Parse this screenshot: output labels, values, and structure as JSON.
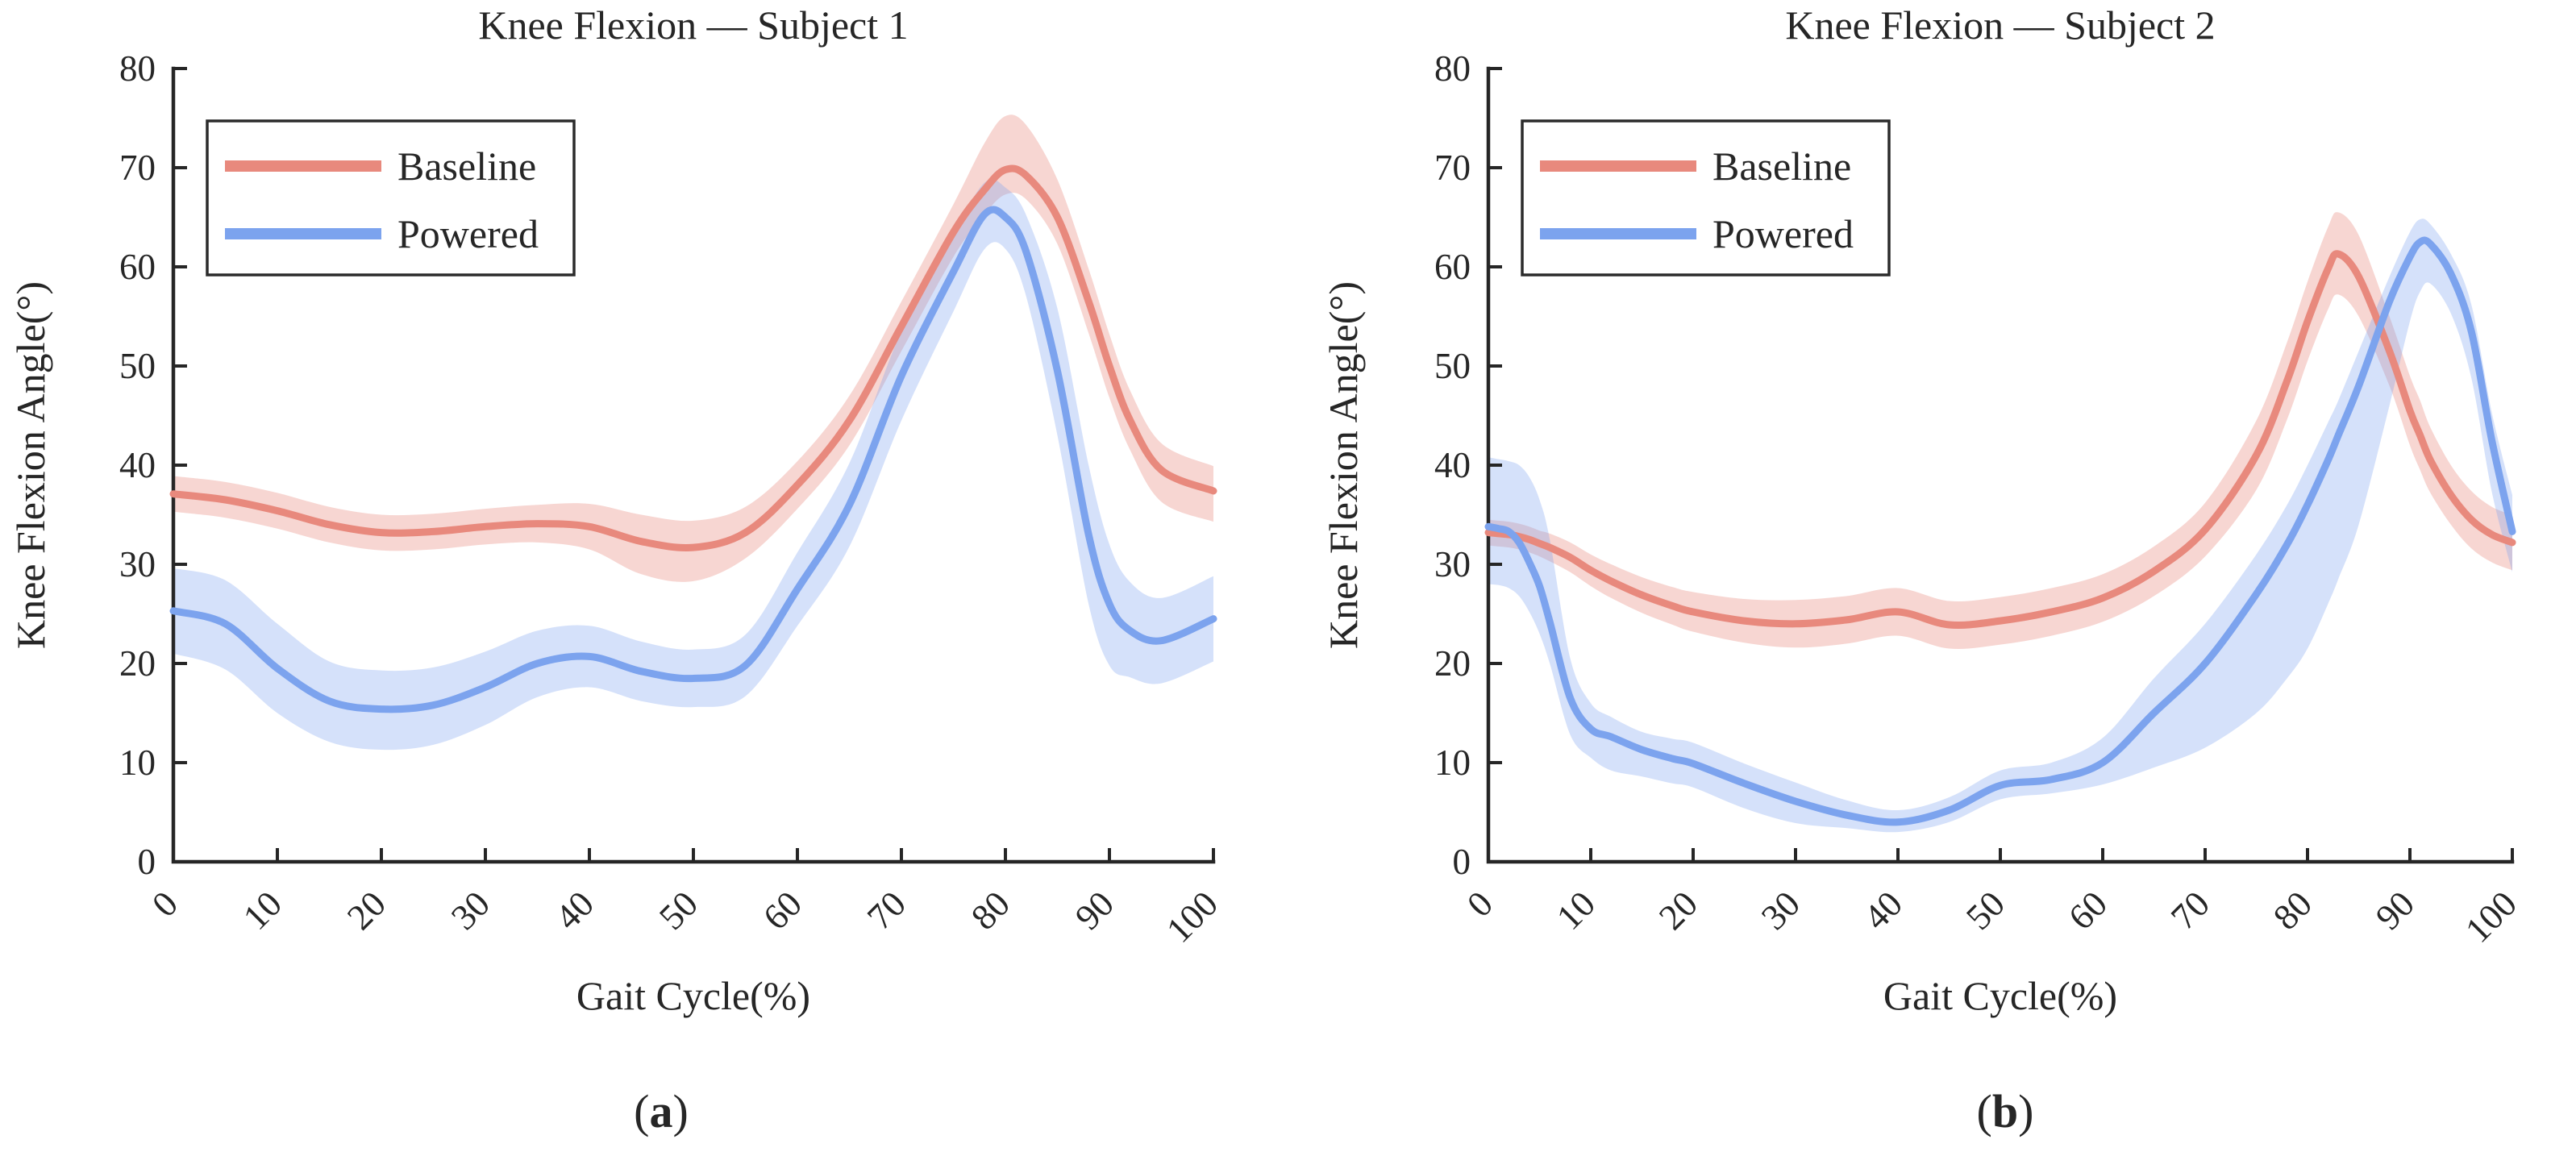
{
  "figure": {
    "background": "#ffffff",
    "description": "Two-panel line chart of knee flexion angle over the gait cycle with mean lines and shaded standard-deviation bands"
  },
  "colors": {
    "baseline": "#e8897d",
    "powered": "#7ca3ee",
    "baseline_band_opacity": 0.35,
    "powered_band_opacity": 0.32,
    "axis": "#262626",
    "text": "#262626",
    "legend_border": "#2b2b2b",
    "legend_fill": "#ffffff"
  },
  "chart_data": [
    {
      "type": "line",
      "title": "Knee Flexion — Subject 1",
      "xlabel": "Gait Cycle(%)",
      "ylabel": "Knee Flexion Angle(°)",
      "caption": {
        "prefix": "(",
        "letter": "a",
        "suffix": ")"
      },
      "xlim": [
        0,
        100
      ],
      "ylim": [
        0,
        80
      ],
      "xticks": [
        0,
        10,
        20,
        30,
        40,
        50,
        60,
        70,
        80,
        90,
        100
      ],
      "yticks": [
        0,
        10,
        20,
        30,
        40,
        50,
        60,
        70,
        80
      ],
      "grid": false,
      "legend": {
        "position": "top-left",
        "entries": [
          {
            "label": "Baseline",
            "series": "baseline"
          },
          {
            "label": "Powered",
            "series": "powered"
          }
        ]
      },
      "x": [
        0,
        5,
        10,
        15,
        20,
        25,
        30,
        35,
        40,
        45,
        50,
        55,
        60,
        65,
        70,
        75,
        78,
        80,
        82,
        85,
        88,
        90,
        92,
        95,
        100
      ],
      "series": [
        {
          "name": "Baseline",
          "key": "baseline",
          "mean": [
            37.1,
            36.5,
            35.4,
            34.0,
            33.2,
            33.3,
            33.8,
            34.1,
            33.8,
            32.3,
            31.7,
            33.2,
            38.0,
            44.5,
            54.0,
            63.5,
            67.8,
            69.8,
            69.2,
            65.0,
            56.5,
            50.0,
            44.5,
            39.5,
            37.4
          ],
          "lower": [
            35.3,
            34.7,
            33.6,
            32.2,
            31.4,
            31.5,
            32.0,
            32.2,
            31.5,
            29.0,
            28.3,
            30.6,
            35.6,
            42.0,
            51.5,
            61.0,
            65.3,
            67.3,
            66.8,
            62.3,
            53.3,
            46.8,
            41.5,
            36.3,
            34.3
          ],
          "upper": [
            38.9,
            38.3,
            37.2,
            35.8,
            35.0,
            35.1,
            35.6,
            36.0,
            36.1,
            35.0,
            34.4,
            35.8,
            40.4,
            47.0,
            56.5,
            66.3,
            72.5,
            75.2,
            74.3,
            68.8,
            59.8,
            53.2,
            47.5,
            42.2,
            39.9
          ]
        },
        {
          "name": "Powered",
          "key": "powered",
          "mean": [
            25.3,
            24.0,
            19.5,
            16.2,
            15.4,
            15.8,
            17.6,
            20.0,
            20.7,
            19.2,
            18.5,
            19.8,
            27.5,
            36.0,
            49.0,
            59.5,
            65.3,
            65.0,
            61.5,
            49.5,
            33.0,
            26.0,
            23.3,
            22.3,
            24.5
          ],
          "lower": [
            21.0,
            19.4,
            15.0,
            12.1,
            11.3,
            11.8,
            13.8,
            16.6,
            17.6,
            16.2,
            15.6,
            16.7,
            23.8,
            31.8,
            44.5,
            55.5,
            61.8,
            61.8,
            57.0,
            43.0,
            26.0,
            19.8,
            18.6,
            18.0,
            20.2
          ],
          "upper": [
            29.6,
            28.4,
            24.0,
            20.2,
            19.3,
            19.6,
            21.2,
            23.3,
            23.8,
            22.2,
            21.4,
            22.9,
            31.2,
            40.2,
            53.5,
            63.3,
            68.5,
            68.0,
            65.2,
            55.8,
            40.0,
            32.0,
            28.2,
            26.6,
            28.8
          ]
        }
      ]
    },
    {
      "type": "line",
      "title": "Knee Flexion — Subject 2",
      "xlabel": "Gait Cycle(%)",
      "ylabel": "Knee Flexion Angle(°)",
      "caption": {
        "prefix": "(",
        "letter": "b",
        "suffix": ")"
      },
      "xlim": [
        0,
        100
      ],
      "ylim": [
        0,
        80
      ],
      "xticks": [
        0,
        10,
        20,
        30,
        40,
        50,
        60,
        70,
        80,
        90,
        100
      ],
      "yticks": [
        0,
        10,
        20,
        30,
        40,
        50,
        60,
        70,
        80
      ],
      "grid": false,
      "legend": {
        "position": "top-left",
        "entries": [
          {
            "label": "Baseline",
            "series": "baseline"
          },
          {
            "label": "Powered",
            "series": "powered"
          }
        ]
      },
      "x": [
        0,
        1,
        2,
        3,
        4,
        5,
        6,
        8,
        10,
        12,
        15,
        18,
        20,
        25,
        30,
        35,
        40,
        45,
        50,
        55,
        60,
        65,
        70,
        75,
        78,
        80,
        82,
        83,
        85,
        88,
        90,
        91,
        92,
        94,
        96,
        98,
        100
      ],
      "series": [
        {
          "name": "Baseline",
          "key": "baseline",
          "mean": [
            33.2,
            33.1,
            33.0,
            32.8,
            32.5,
            32.1,
            31.7,
            30.7,
            29.4,
            28.3,
            26.9,
            25.8,
            25.2,
            24.3,
            24.0,
            24.4,
            25.2,
            23.9,
            24.3,
            25.2,
            26.6,
            29.3,
            33.5,
            41.0,
            48.5,
            54.5,
            59.8,
            61.3,
            59.0,
            51.5,
            45.5,
            43.0,
            40.5,
            37.0,
            34.5,
            33.0,
            32.2
          ],
          "lower": [
            31.9,
            31.8,
            31.7,
            31.5,
            31.2,
            30.8,
            30.3,
            29.2,
            27.8,
            26.6,
            25.1,
            23.9,
            23.2,
            22.1,
            21.6,
            22.0,
            22.8,
            21.5,
            21.9,
            22.8,
            24.2,
            26.8,
            30.8,
            37.5,
            44.6,
            50.5,
            55.7,
            57.2,
            55.0,
            48.0,
            42.0,
            39.5,
            37.2,
            34.0,
            31.6,
            30.2,
            29.4
          ],
          "upper": [
            34.5,
            34.4,
            34.3,
            34.1,
            33.8,
            33.4,
            33.1,
            32.2,
            31.0,
            30.0,
            28.7,
            27.7,
            27.2,
            26.5,
            26.4,
            26.8,
            27.6,
            26.3,
            26.7,
            27.6,
            29.0,
            31.8,
            36.2,
            44.5,
            52.4,
            58.5,
            64.0,
            65.5,
            63.2,
            55.0,
            49.0,
            46.5,
            43.8,
            40.0,
            37.4,
            35.8,
            35.0
          ]
        },
        {
          "name": "Powered",
          "key": "powered",
          "mean": [
            33.8,
            33.6,
            33.3,
            32.2,
            30.2,
            27.8,
            24.2,
            16.5,
            13.4,
            12.6,
            11.3,
            10.4,
            9.9,
            7.9,
            6.1,
            4.7,
            4.0,
            5.2,
            7.7,
            8.3,
            10.0,
            15.0,
            20.0,
            27.0,
            32.0,
            36.0,
            40.5,
            43.0,
            48.0,
            56.5,
            61.0,
            62.5,
            62.3,
            59.3,
            53.5,
            42.5,
            33.3
          ],
          "lower": [
            28.0,
            27.9,
            27.6,
            26.8,
            25.2,
            23.0,
            20.0,
            12.8,
            10.5,
            9.2,
            8.6,
            7.9,
            7.5,
            5.4,
            3.9,
            3.4,
            3.0,
            4.0,
            6.3,
            6.9,
            7.8,
            9.5,
            11.5,
            15.0,
            18.5,
            21.5,
            26.0,
            28.5,
            34.0,
            46.0,
            54.5,
            57.5,
            58.3,
            55.3,
            48.8,
            37.3,
            29.2
          ],
          "upper": [
            40.8,
            40.6,
            40.4,
            40.0,
            38.8,
            36.5,
            32.5,
            20.5,
            16.0,
            14.6,
            13.1,
            12.4,
            12.0,
            9.9,
            8.0,
            6.2,
            5.2,
            6.5,
            9.2,
            10.0,
            12.5,
            18.5,
            24.0,
            31.0,
            36.0,
            40.0,
            44.3,
            46.5,
            51.5,
            59.0,
            63.5,
            64.8,
            64.3,
            61.3,
            56.2,
            45.3,
            37.0
          ]
        }
      ]
    }
  ]
}
